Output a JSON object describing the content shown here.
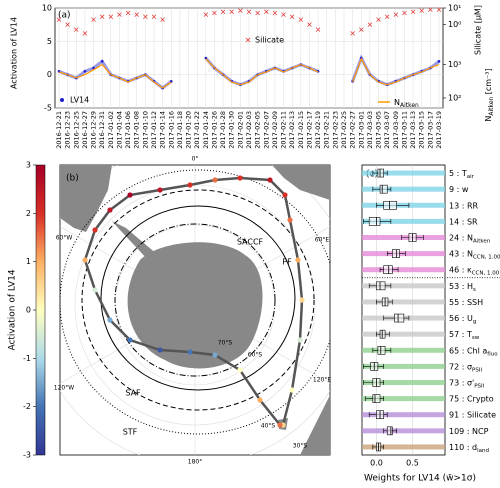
{
  "chart_data": [
    {
      "type": "line",
      "title": "(a)",
      "ylabel": "Activation of LV14",
      "y2label": "Silicate [µM]",
      "y3label": [
        "N",
        "Aitken",
        " [cm⁻³]"
      ],
      "categories": [
        "2016-12-21",
        "2016-12-23",
        "2016-12-25",
        "2016-12-27",
        "2016-12-29",
        "2016-12-31",
        "2017-01-02",
        "2017-01-04",
        "2017-01-06",
        "2017-01-08",
        "2017-01-10",
        "2017-01-12",
        "2017-01-14",
        "2017-01-16",
        "2017-01-18",
        "2017-01-20",
        "2017-01-22",
        "2017-01-24",
        "2017-01-26",
        "2017-01-28",
        "2017-01-30",
        "2017-02-01",
        "2017-02-03",
        "2017-02-05",
        "2017-02-07",
        "2017-02-09",
        "2017-02-11",
        "2017-02-13",
        "2017-02-15",
        "2017-02-17",
        "2017-02-19",
        "2017-02-21",
        "2017-02-23",
        "2017-02-25",
        "2017-02-27",
        "2017-03-01",
        "2017-03-03",
        "2017-03-05",
        "2017-03-07",
        "2017-03-09",
        "2017-03-11",
        "2017-03-13",
        "2017-03-15",
        "2017-03-17",
        "2017-03-19"
      ],
      "series": [
        {
          "name": "LV14",
          "color": "#2020d0",
          "axis": "y",
          "values": [
            0.5,
            0,
            -0.5,
            0.5,
            1,
            2,
            0,
            -0.5,
            -1,
            -0.5,
            0,
            -1,
            -2,
            -1,
            null,
            null,
            null,
            2.5,
            1,
            0,
            -1,
            -1.5,
            -1,
            0,
            0.5,
            1,
            0.5,
            1,
            1.5,
            1,
            0.5,
            null,
            null,
            null,
            -1,
            2.5,
            0,
            -1,
            -1.5,
            -1,
            -0.5,
            0,
            0.5,
            1,
            2
          ]
        },
        {
          "name": "Silicate",
          "color": "#e03030",
          "axis": "y2",
          "values": [
            2,
            1,
            0.5,
            0.3,
            2,
            3,
            3,
            4,
            5,
            4,
            3,
            3,
            2,
            null,
            null,
            null,
            null,
            4,
            5,
            6,
            6,
            7,
            6,
            5,
            6,
            5,
            4,
            3,
            2,
            1,
            0.5,
            null,
            null,
            null,
            0.3,
            0.5,
            1,
            2,
            3,
            4,
            5,
            6,
            7,
            8,
            8
          ]
        },
        {
          "name": "N",
          "name_sub": "Aitken",
          "color": "#ff9a00",
          "axis": "y3",
          "values": [
            600,
            500,
            400,
            500,
            700,
            1000,
            500,
            400,
            300,
            400,
            500,
            300,
            200,
            300,
            null,
            null,
            null,
            1500,
            800,
            500,
            300,
            250,
            300,
            500,
            600,
            800,
            600,
            800,
            1000,
            800,
            600,
            null,
            null,
            null,
            300,
            1500,
            500,
            300,
            250,
            300,
            400,
            500,
            600,
            800,
            1000
          ]
        }
      ],
      "ylim": [
        -5,
        10
      ],
      "yticks": [
        -5,
        0,
        5,
        10
      ],
      "y2scale": "log",
      "y2lim": [
        1e-05,
        10
      ],
      "y2ticks": [
        {
          "value": 1,
          "label": "10⁰"
        },
        {
          "value": 10,
          "label": "10¹"
        }
      ],
      "y3scale": "log",
      "y3lim": [
        50,
        50000
      ],
      "y3ticks": [
        {
          "value": 100,
          "label": "10²"
        },
        {
          "value": 1000,
          "label": "10³"
        }
      ],
      "grid": true
    },
    {
      "type": "box",
      "title": "(c)",
      "xlabel": "Weights for LV14 (w̄>1σ)",
      "xlim": [
        -0.2,
        0.95
      ],
      "xticks": [
        {
          "value": 0,
          "label": "0.0"
        },
        {
          "value": 0.5,
          "label": "0.5"
        }
      ],
      "categories": [
        "5 : T",
        "9 : w",
        "13 : RR",
        "14 : SR",
        "24 : N",
        "43 : N",
        "46 : κ",
        "53 : H",
        "55 : SSH",
        "56 : U",
        "57 : T",
        "65 : Chl a",
        "72 : σ",
        "73 : σ'",
        "75 : Crypto",
        "91 : Silicate",
        "109 : NCP",
        "110 : d"
      ],
      "category_subs": [
        "air",
        null,
        null,
        null,
        "Aitken",
        "CCN, 1.00",
        "CCN, 1.00",
        "s",
        null,
        "g",
        "sw",
        "fluo",
        "PSII",
        "PSII",
        null,
        null,
        null,
        "land"
      ],
      "row_colors": [
        "#7fd3e6",
        "#7fd3e6",
        "#7fd3e6",
        "#7fd3e6",
        "#e58ad8",
        "#e58ad8",
        "#e58ad8",
        "#c8c8c8",
        "#c8c8c8",
        "#c8c8c8",
        "#c8c8c8",
        "#8fcf8f",
        "#8fcf8f",
        "#8fcf8f",
        "#8fcf8f",
        "#b78fd8",
        "#b78fd8",
        "#c9a47a"
      ],
      "boxes": [
        [
          -0.05,
          0.02,
          0.05,
          0.1,
          0.15
        ],
        [
          -0.05,
          0.05,
          0.08,
          0.15,
          0.2
        ],
        [
          0,
          0.1,
          0.18,
          0.28,
          0.45
        ],
        [
          -0.18,
          -0.1,
          0,
          0.05,
          0.2
        ],
        [
          0.35,
          0.45,
          0.5,
          0.55,
          0.65
        ],
        [
          0.15,
          0.22,
          0.28,
          0.32,
          0.4
        ],
        [
          0.05,
          0.1,
          0.17,
          0.22,
          0.3
        ],
        [
          -0.1,
          0,
          0.05,
          0.12,
          0.2
        ],
        [
          0,
          0.08,
          0.12,
          0.16,
          0.22
        ],
        [
          0.1,
          0.25,
          0.3,
          0.38,
          0.45
        ],
        [
          0,
          0.05,
          0.08,
          0.12,
          0.18
        ],
        [
          -0.05,
          0.02,
          0.06,
          0.12,
          0.2
        ],
        [
          -0.18,
          -0.08,
          -0.03,
          0.02,
          0.1
        ],
        [
          -0.18,
          -0.05,
          0,
          0.05,
          0.1
        ],
        [
          -0.15,
          -0.05,
          -0.02,
          0.05,
          0.1
        ],
        [
          -0.1,
          0,
          0.05,
          0.1,
          0.15
        ],
        [
          0.1,
          0.15,
          0.2,
          0.22,
          0.28
        ],
        [
          -0.05,
          0,
          0.03,
          0.06,
          0.1
        ]
      ]
    }
  ],
  "map": {
    "title": "(b)",
    "labels": [
      "0°",
      "60°W",
      "60°E",
      "120°W",
      "120°E",
      "180°",
      "30°S",
      "40°S",
      "60°S",
      "70°S",
      "SACCF",
      "PF",
      "SAF",
      "STF"
    ],
    "colorbar": {
      "label": "Activation of LV14",
      "lim": [
        -3,
        3
      ],
      "ticks": [
        -3,
        -2,
        -1,
        0,
        1,
        2,
        3
      ]
    },
    "track_values": [
      0.5,
      0,
      -0.5,
      0.5,
      1,
      1.5,
      2,
      2.5,
      2,
      1.5,
      2,
      2.5,
      3,
      2.5,
      2,
      1,
      -0.5,
      -1.5,
      -2,
      -2.5,
      -2,
      -1.5,
      0,
      1,
      1.5
    ]
  }
}
